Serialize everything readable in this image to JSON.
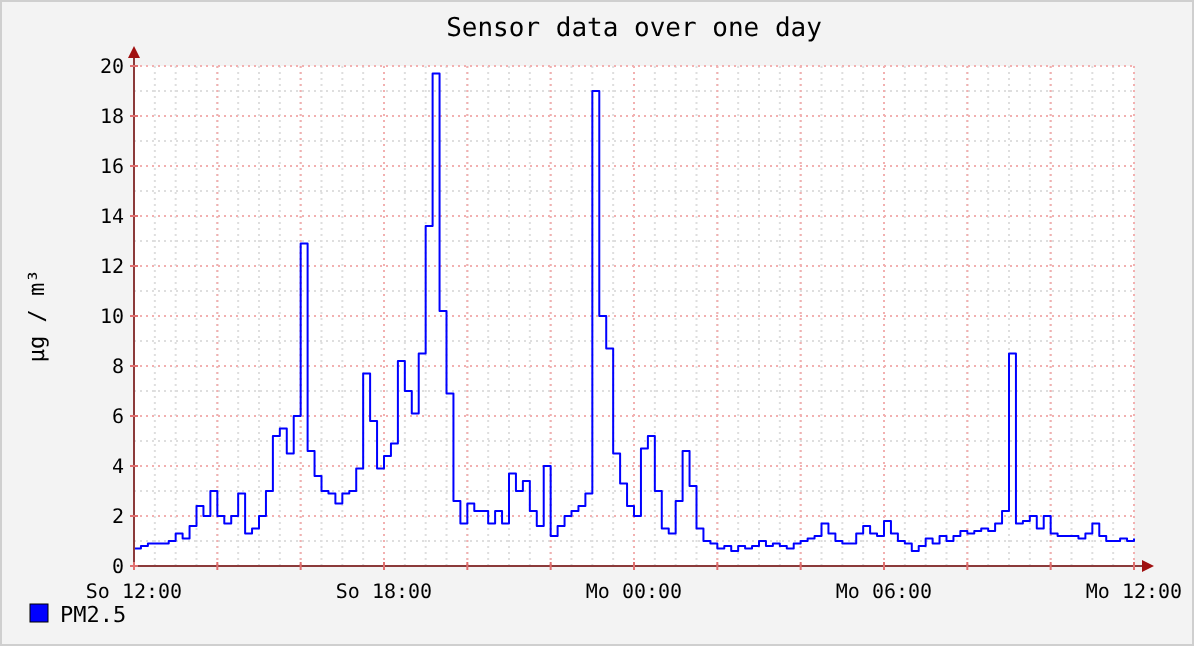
{
  "chart_data": {
    "type": "step",
    "title": "Sensor data over one day",
    "ylabel": "µg / m³",
    "legend": "bottom left",
    "grid": true,
    "ylim": [
      0,
      20
    ],
    "yticks": [
      0,
      2,
      4,
      6,
      8,
      10,
      12,
      14,
      16,
      18,
      20
    ],
    "categories": [
      "So 12:00",
      null,
      null,
      null,
      null,
      null,
      null,
      null,
      null,
      null,
      null,
      null,
      null,
      null,
      null,
      null,
      null,
      null,
      null,
      null,
      null,
      null,
      null,
      null,
      null,
      null,
      null,
      null,
      null,
      null,
      null,
      null,
      null,
      null,
      null,
      null,
      "So 18:00",
      null,
      null,
      null,
      null,
      null,
      null,
      null,
      null,
      null,
      null,
      null,
      null,
      null,
      null,
      null,
      null,
      null,
      null,
      null,
      null,
      null,
      null,
      null,
      null,
      null,
      null,
      null,
      null,
      null,
      null,
      null,
      null,
      null,
      null,
      null,
      "Mo 00:00",
      null,
      null,
      null,
      null,
      null,
      null,
      null,
      null,
      null,
      null,
      null,
      null,
      null,
      null,
      null,
      null,
      null,
      null,
      null,
      null,
      null,
      null,
      null,
      null,
      null,
      null,
      null,
      null,
      null,
      null,
      null,
      null,
      null,
      null,
      null,
      "Mo 06:00",
      null,
      null,
      null,
      null,
      null,
      null,
      null,
      null,
      null,
      null,
      null,
      null,
      null,
      null,
      null,
      null,
      null,
      null,
      null,
      null,
      null,
      null,
      null,
      null,
      null,
      null,
      null,
      null,
      null,
      null,
      null,
      null,
      null,
      null,
      null,
      "Mo 12:00"
    ],
    "series": [
      {
        "name": "PM2.5",
        "color": "#0000ff",
        "values": [
          0.7,
          0.8,
          0.9,
          0.9,
          0.9,
          1.0,
          1.3,
          1.1,
          1.6,
          2.4,
          2.0,
          3.0,
          2.0,
          1.7,
          2.0,
          2.9,
          1.3,
          1.5,
          2.0,
          3.0,
          5.2,
          5.5,
          4.5,
          6.0,
          12.9,
          4.6,
          3.6,
          3.0,
          2.9,
          2.5,
          2.9,
          3.0,
          3.9,
          7.7,
          5.8,
          3.9,
          4.4,
          4.9,
          8.2,
          7.0,
          6.1,
          8.5,
          13.6,
          19.7,
          10.2,
          6.9,
          2.6,
          1.7,
          2.5,
          2.2,
          2.2,
          1.7,
          2.2,
          1.7,
          3.7,
          3.0,
          3.4,
          2.2,
          1.6,
          4.0,
          1.2,
          1.6,
          2.0,
          2.2,
          2.4,
          2.9,
          19.0,
          10.0,
          8.7,
          4.5,
          3.3,
          2.4,
          2.0,
          4.7,
          5.2,
          3.0,
          1.5,
          1.3,
          2.6,
          4.6,
          3.2,
          1.5,
          1.0,
          0.9,
          0.7,
          0.8,
          0.6,
          0.8,
          0.7,
          0.8,
          1.0,
          0.8,
          0.9,
          0.8,
          0.7,
          0.9,
          1.0,
          1.1,
          1.2,
          1.7,
          1.3,
          1.0,
          0.9,
          0.9,
          1.3,
          1.6,
          1.3,
          1.2,
          1.8,
          1.3,
          1.0,
          0.9,
          0.6,
          0.8,
          1.1,
          0.9,
          1.2,
          1.0,
          1.2,
          1.4,
          1.3,
          1.4,
          1.5,
          1.4,
          1.7,
          2.2,
          8.5,
          1.7,
          1.8,
          2.0,
          1.5,
          2.0,
          1.3,
          1.2,
          1.2,
          1.2,
          1.1,
          1.3,
          1.7,
          1.2,
          1.0,
          1.0,
          1.1,
          1.0,
          1.1
        ]
      }
    ]
  }
}
